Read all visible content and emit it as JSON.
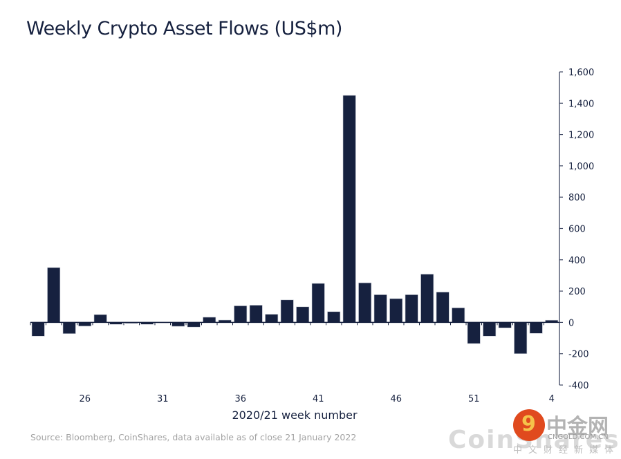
{
  "title": "Weekly Crypto Asset Flows (US$m)",
  "source": "Source: Bloomberg, CoinShares, data available as of close 21 January 2022",
  "watermark": {
    "coinshares": "CoinShares",
    "cn_brand": "中金网",
    "cn_url": "CNGOLD.COM.CN",
    "cn_sub": "中文财经新媒体"
  },
  "colors": {
    "bar": "#16213f",
    "axis": "#16213f",
    "text": "#16213f",
    "source": "#a3a3a3"
  },
  "chart_data": {
    "type": "bar",
    "title": "Weekly Crypto Asset Flows (US$m)",
    "xlabel": "2020/21 week number",
    "ylabel": "",
    "ylim": [
      -400,
      1600
    ],
    "yticks": [
      1600,
      1400,
      1200,
      1000,
      800,
      600,
      400,
      200,
      0,
      -200,
      -400
    ],
    "ytick_labels": [
      "1,600",
      "1,400",
      "1,200",
      "1,000",
      "800",
      "600",
      "400",
      "200",
      "0",
      "-200",
      "-400"
    ],
    "y_axis_position": "right",
    "grid": false,
    "legend": "none",
    "categories": [
      "23",
      "24",
      "25",
      "26",
      "27",
      "28",
      "29",
      "30",
      "31",
      "32",
      "33",
      "34",
      "35",
      "36",
      "37",
      "38",
      "39",
      "40",
      "41",
      "42",
      "43",
      "44",
      "45",
      "46",
      "47",
      "48",
      "49",
      "50",
      "51",
      "52",
      "1",
      "2",
      "3",
      "4"
    ],
    "xtick_labels": [
      {
        "index": 3,
        "label": "26"
      },
      {
        "index": 8,
        "label": "31"
      },
      {
        "index": 13,
        "label": "36"
      },
      {
        "index": 18,
        "label": "41"
      },
      {
        "index": 23,
        "label": "46"
      },
      {
        "index": 28,
        "label": "51"
      },
      {
        "index": 33,
        "label": "4"
      }
    ],
    "values": [
      -88,
      350,
      -72,
      -24,
      50,
      -13,
      -6,
      -13,
      -4,
      -25,
      -30,
      33,
      15,
      106,
      110,
      52,
      144,
      100,
      249,
      69,
      1450,
      253,
      177,
      152,
      177,
      308,
      194,
      93,
      -135,
      -88,
      -35,
      -200,
      -70,
      14
    ]
  }
}
